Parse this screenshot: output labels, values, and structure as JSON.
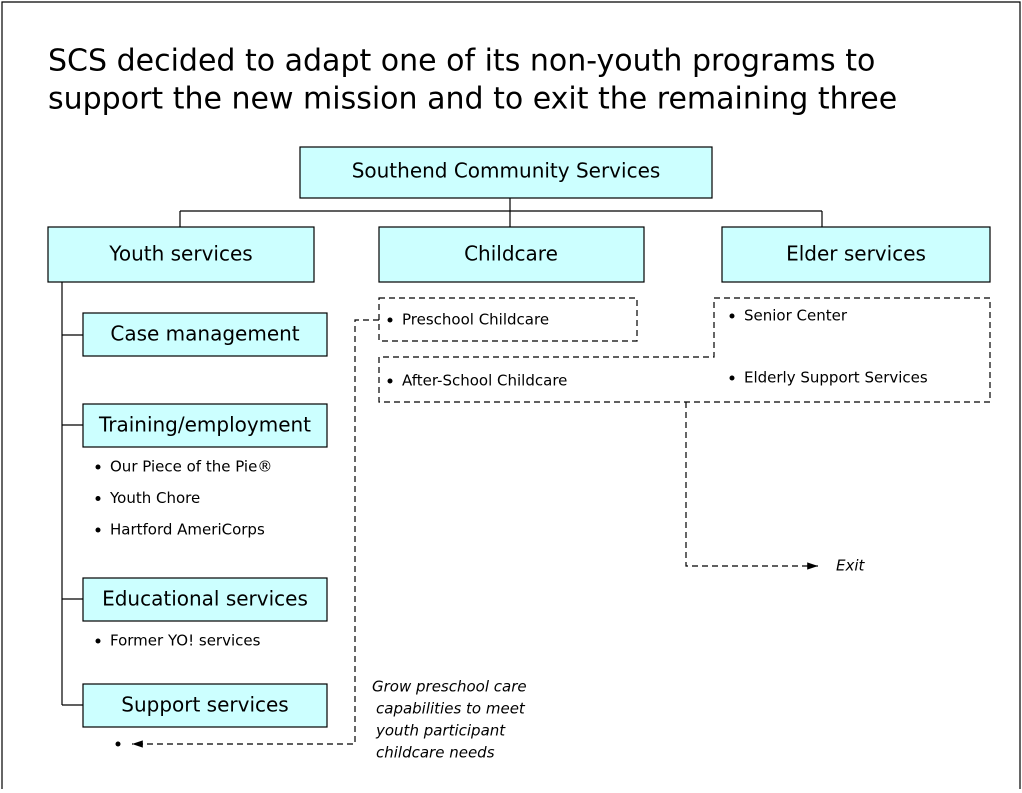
{
  "title": {
    "lines": [
      "SCS decided to adapt one of its non-youth programs to",
      "support the new mission and to exit the remaining three"
    ]
  },
  "root": {
    "label": "Southend Community Services"
  },
  "divisions": [
    {
      "label": "Youth services"
    },
    {
      "label": "Childcare"
    },
    {
      "label": "Elder services"
    }
  ],
  "youth_programs": [
    {
      "label": "Case management",
      "items": []
    },
    {
      "label": "Training/employment",
      "items": [
        "Our Piece of the Pie®",
        "Youth Chore",
        "Hartford AmeriCorps"
      ]
    },
    {
      "label": "Educational services",
      "items": [
        "Former YO! services"
      ]
    },
    {
      "label": "Support services",
      "items": []
    }
  ],
  "childcare_items": [
    "Preschool Childcare",
    "After-School Childcare"
  ],
  "elder_items": [
    "Senior Center",
    "Elderly Support Services"
  ],
  "annotations": {
    "exit": "Exit",
    "grow": [
      "Grow preschool care",
      "capabilities to meet",
      "youth participant",
      "childcare needs"
    ]
  }
}
